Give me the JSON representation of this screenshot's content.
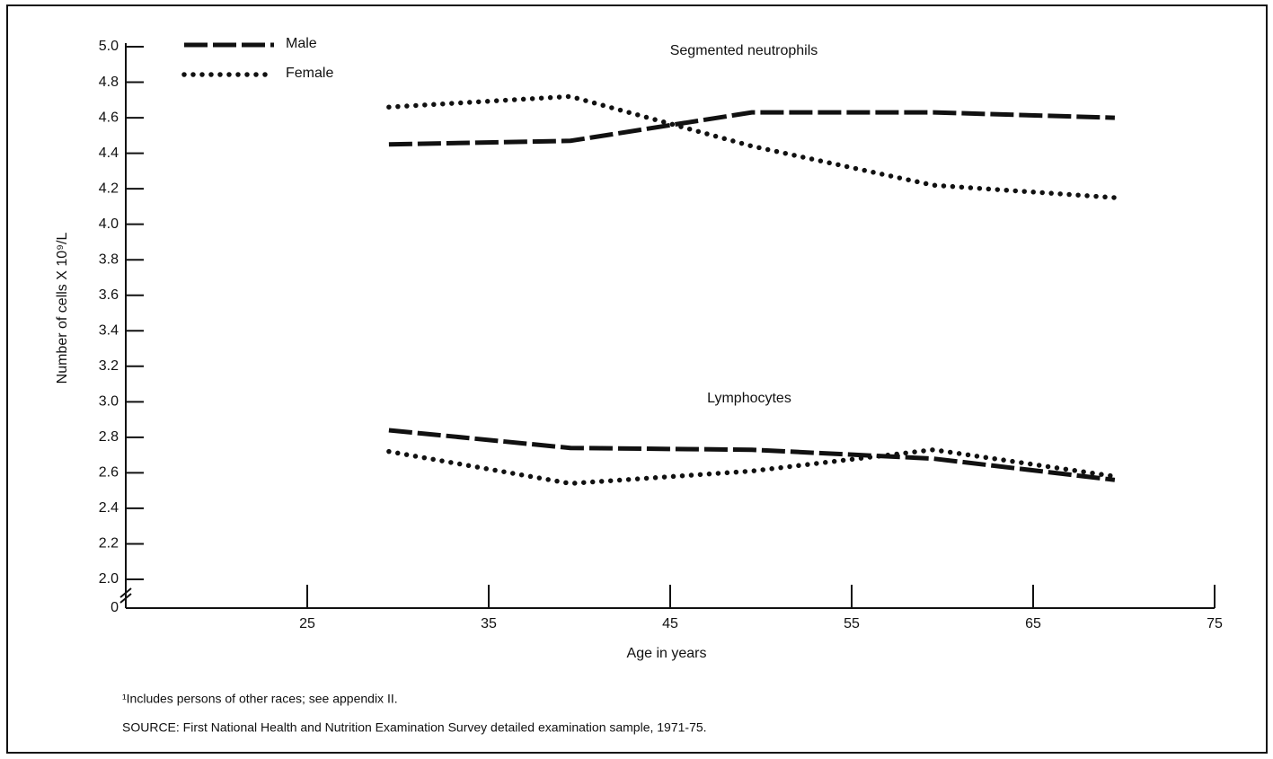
{
  "chart_data": {
    "type": "line",
    "annotations": [
      "Segmented neutrophils",
      "Lymphocytes"
    ],
    "xlabel": "Age in years",
    "ylabel": "Number of cells X 10⁹/L",
    "x": [
      29.5,
      39.5,
      49.5,
      59.5,
      69.5
    ],
    "series": [
      {
        "name": "Male",
        "color": "#111111",
        "style": "dashed",
        "values": [
          4.45,
          4.47,
          4.63,
          4.63,
          4.6
        ]
      },
      {
        "name": "Female",
        "color": "#111111",
        "style": "dotted",
        "values": [
          4.66,
          4.72,
          4.44,
          4.22,
          4.15
        ]
      },
      {
        "name": "Male",
        "color": "#111111",
        "style": "dashed",
        "values": [
          2.84,
          2.74,
          2.73,
          2.68,
          2.56
        ]
      },
      {
        "name": "Female",
        "color": "#111111",
        "style": "dotted",
        "values": [
          2.72,
          2.54,
          2.61,
          2.73,
          2.58
        ]
      }
    ],
    "xlim": [
      15,
      75
    ],
    "xticks": [
      25,
      35,
      45,
      55,
      65,
      75
    ],
    "ylim": [
      2.0,
      5.0
    ],
    "yticks": [
      0,
      {
        "value": 2.0,
        "label": "2.0"
      },
      {
        "value": 2.2,
        "label": "2.2"
      },
      {
        "value": 2.4,
        "label": "2.4"
      },
      {
        "value": 2.6,
        "label": "2.6"
      },
      {
        "value": 2.8,
        "label": "2.8"
      },
      {
        "value": 3.0,
        "label": "3.0"
      },
      {
        "value": 3.2,
        "label": "3.2"
      },
      {
        "value": 3.4,
        "label": "3.4"
      },
      {
        "value": 3.6,
        "label": "3.6"
      },
      {
        "value": 3.8,
        "label": "3.8"
      },
      {
        "value": 4.0,
        "label": "4.0"
      },
      {
        "value": 4.2,
        "label": "4.2"
      },
      {
        "value": 4.4,
        "label": "4.4"
      },
      {
        "value": 4.6,
        "label": "4.6"
      },
      {
        "value": 4.8,
        "label": "4.8"
      },
      {
        "value": 5.0,
        "label": "5.0"
      }
    ],
    "axis_break": true,
    "legend": "upper left",
    "grid": false,
    "footnotes": [
      "¹Includes persons of other races; see appendix II.",
      "SOURCE:  First National Health and Nutrition Examination Survey detailed examination sample, 1971-75."
    ]
  }
}
